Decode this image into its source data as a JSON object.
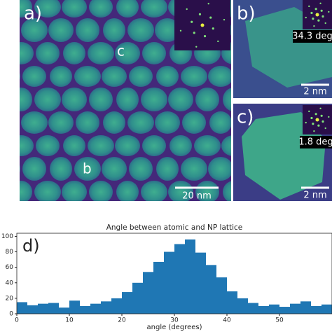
{
  "images": {
    "a": {
      "label": "a)",
      "markers": [
        "c",
        "b"
      ],
      "scale_bar": "20 nm"
    },
    "b": {
      "label": "b)",
      "angle": "34.3 deg",
      "scale_bar": "2 nm"
    },
    "c": {
      "label": "c)",
      "angle": "1.8 deg",
      "scale_bar": "2 nm"
    }
  },
  "chart_data": {
    "type": "histogram",
    "panel_label": "d)",
    "title": "Angle between atomic and NP lattice",
    "x_label": "angle (degrees)",
    "bins": [
      0,
      2,
      4,
      6,
      8,
      10,
      12,
      14,
      16,
      18,
      20,
      22,
      24,
      26,
      28,
      30,
      32,
      34,
      36,
      38,
      40,
      42,
      44,
      46,
      48,
      50,
      52,
      54,
      56,
      58,
      60
    ],
    "values": [
      15,
      11,
      13,
      14,
      8,
      17,
      10,
      13,
      16,
      20,
      28,
      40,
      54,
      67,
      80,
      90,
      96,
      79,
      63,
      47,
      29,
      20,
      14,
      10,
      12,
      9,
      13,
      16,
      10,
      12
    ],
    "color": "#1f77b4",
    "xlim": [
      0,
      60
    ],
    "ylim": [
      0,
      104
    ],
    "xticks": [
      0,
      10,
      20,
      30,
      40,
      50
    ],
    "yticks": [
      0,
      20,
      40,
      60,
      80,
      100
    ]
  }
}
